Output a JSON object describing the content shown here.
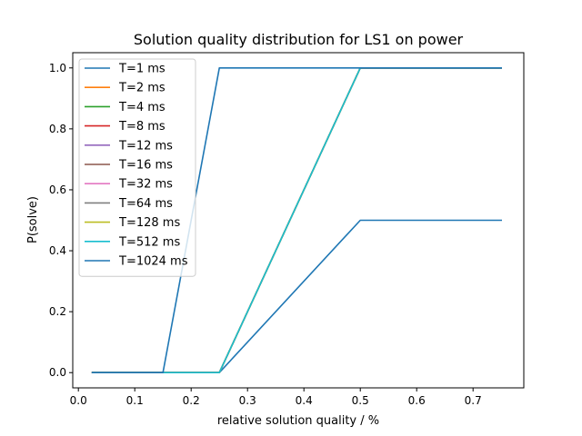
{
  "chart_data": {
    "type": "line",
    "title": "Solution quality distribution for LS1 on power",
    "xlabel": "relative solution quality / %",
    "ylabel": "P(solve)",
    "xlim": [
      -0.01,
      0.79
    ],
    "ylim": [
      -0.05,
      1.05
    ],
    "xticks": [
      0.0,
      0.1,
      0.2,
      0.3,
      0.4,
      0.5,
      0.6,
      0.7
    ],
    "xtick_labels": [
      "0.0",
      "0.1",
      "0.2",
      "0.3",
      "0.4",
      "0.5",
      "0.6",
      "0.7"
    ],
    "yticks": [
      0.0,
      0.2,
      0.4,
      0.6,
      0.8,
      1.0
    ],
    "ytick_labels": [
      "0.0",
      "0.2",
      "0.4",
      "0.6",
      "0.8",
      "1.0"
    ],
    "grid": false,
    "legend_position": "top-left",
    "series": [
      {
        "name": "T=1 ms",
        "color": "#1f77b4",
        "x": [
          0.025,
          0.25,
          0.5,
          0.75
        ],
        "y": [
          0.0,
          0.0,
          0.5,
          0.5
        ]
      },
      {
        "name": "T=2 ms",
        "color": "#ff7f0e",
        "x": [
          0.025,
          0.25,
          0.5,
          0.75
        ],
        "y": [
          0.0,
          0.0,
          1.0,
          1.0
        ]
      },
      {
        "name": "T=4 ms",
        "color": "#2ca02c",
        "x": [
          0.025,
          0.25,
          0.5,
          0.75
        ],
        "y": [
          0.0,
          0.0,
          1.0,
          1.0
        ]
      },
      {
        "name": "T=8 ms",
        "color": "#d62728",
        "x": [
          0.025,
          0.25,
          0.5,
          0.75
        ],
        "y": [
          0.0,
          0.0,
          1.0,
          1.0
        ]
      },
      {
        "name": "T=12 ms",
        "color": "#9467bd",
        "x": [
          0.025,
          0.25,
          0.5,
          0.75
        ],
        "y": [
          0.0,
          0.0,
          1.0,
          1.0
        ]
      },
      {
        "name": "T=16 ms",
        "color": "#8c564b",
        "x": [
          0.025,
          0.25,
          0.5,
          0.75
        ],
        "y": [
          0.0,
          0.0,
          1.0,
          1.0
        ]
      },
      {
        "name": "T=32 ms",
        "color": "#e377c2",
        "x": [
          0.025,
          0.25,
          0.5,
          0.75
        ],
        "y": [
          0.0,
          0.0,
          1.0,
          1.0
        ]
      },
      {
        "name": "T=64 ms",
        "color": "#7f7f7f",
        "x": [
          0.025,
          0.25,
          0.5,
          0.75
        ],
        "y": [
          0.0,
          0.0,
          1.0,
          1.0
        ]
      },
      {
        "name": "T=128 ms",
        "color": "#bcbd22",
        "x": [
          0.025,
          0.25,
          0.5,
          0.75
        ],
        "y": [
          0.0,
          0.0,
          1.0,
          1.0
        ]
      },
      {
        "name": "T=512 ms",
        "color": "#17becf",
        "x": [
          0.025,
          0.25,
          0.5,
          0.75
        ],
        "y": [
          0.0,
          0.0,
          1.0,
          1.0
        ]
      },
      {
        "name": "T=1024 ms",
        "color": "#1f77b4",
        "x": [
          0.025,
          0.15,
          0.25,
          0.5,
          0.75
        ],
        "y": [
          0.0,
          0.0,
          1.0,
          1.0,
          1.0
        ]
      }
    ]
  }
}
